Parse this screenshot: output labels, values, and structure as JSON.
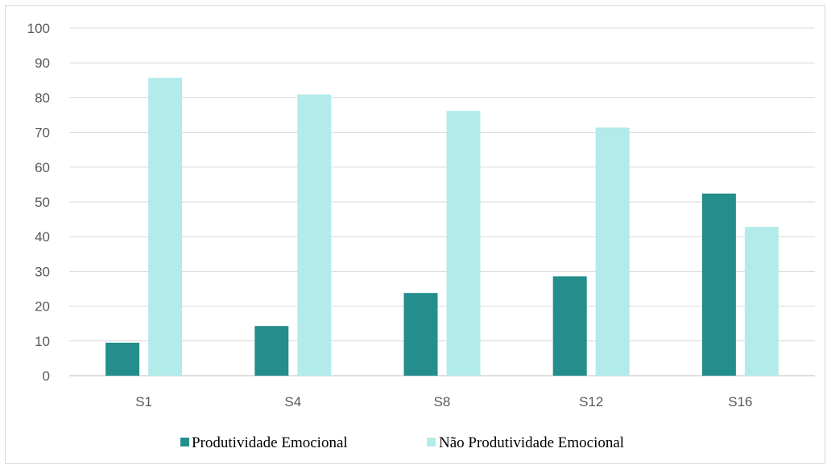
{
  "chart_data": {
    "type": "bar",
    "categories": [
      "S1",
      "S4",
      "S8",
      "S12",
      "S16"
    ],
    "series": [
      {
        "name": "Produtividade Emocional",
        "color": "#238e8b",
        "values": [
          9.5,
          14.3,
          23.8,
          28.6,
          52.4
        ]
      },
      {
        "name": "Não Produtividade Emocional",
        "color": "#b3ebeb",
        "values": [
          85.7,
          80.9,
          76.2,
          71.4,
          42.8
        ]
      }
    ],
    "yticks": [
      "0",
      "10",
      "20",
      "30",
      "40",
      "50",
      "60",
      "70",
      "80",
      "90",
      "100"
    ],
    "ylim": [
      0,
      100
    ],
    "grid": true,
    "legend_position": "bottom",
    "title": "",
    "xlabel": "",
    "ylabel": ""
  }
}
